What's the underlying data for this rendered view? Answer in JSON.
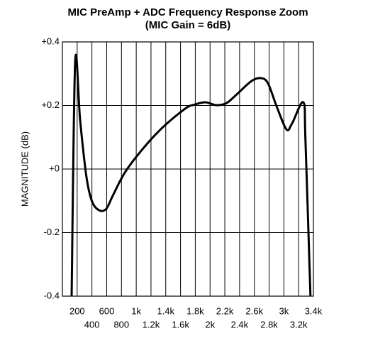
{
  "chart_data": {
    "type": "line",
    "title": "MIC PreAmp + ADC Frequency Response Zoom",
    "subtitle": "(MIC Gain = 6dB)",
    "ylabel": "MAGNITUDE (dB)",
    "xlim": [
      0,
      3400
    ],
    "ylim": [
      -0.4,
      0.4
    ],
    "yticks": [
      {
        "value": -0.4,
        "label": "-0.4"
      },
      {
        "value": -0.2,
        "label": "-0.2"
      },
      {
        "value": 0,
        "label": "+0"
      },
      {
        "value": 0.2,
        "label": "+0.2"
      },
      {
        "value": 0.4,
        "label": "+0.4"
      }
    ],
    "xticks": [
      200,
      400,
      600,
      800,
      {
        "value": 1000,
        "label": "1k"
      },
      {
        "value": 1200,
        "label": "1.2k"
      },
      {
        "value": 1400,
        "label": "1.4k"
      },
      {
        "value": 1600,
        "label": "1.6k"
      },
      {
        "value": 1800,
        "label": "1.8k"
      },
      {
        "value": 2000,
        "label": "2k"
      },
      {
        "value": 2200,
        "label": "2.2k"
      },
      {
        "value": 2400,
        "label": "2.4k"
      },
      {
        "value": 2600,
        "label": "2.6k"
      },
      {
        "value": 2800,
        "label": "2.8k"
      },
      {
        "value": 3000,
        "label": "3k"
      },
      {
        "value": 3200,
        "label": "3.2k"
      },
      {
        "value": 3400,
        "label": "3.4k"
      }
    ],
    "grid": true,
    "series": [
      {
        "color": "#000000",
        "x": [
          125,
          173,
          240,
          326,
          403,
          499,
          595,
          691,
          883,
          1267,
          1651,
          1795,
          1939,
          2083,
          2227,
          2371,
          2563,
          2688,
          2784,
          2899,
          3034,
          3110,
          3264,
          3293,
          3360
        ],
        "values": [
          -0.4,
          0.337,
          0.154,
          -0.025,
          -0.103,
          -0.13,
          -0.125,
          -0.08,
          0.002,
          0.11,
          0.188,
          0.203,
          0.21,
          0.201,
          0.208,
          0.237,
          0.277,
          0.286,
          0.27,
          0.199,
          0.125,
          0.143,
          0.21,
          0.087,
          -0.4
        ]
      }
    ]
  }
}
